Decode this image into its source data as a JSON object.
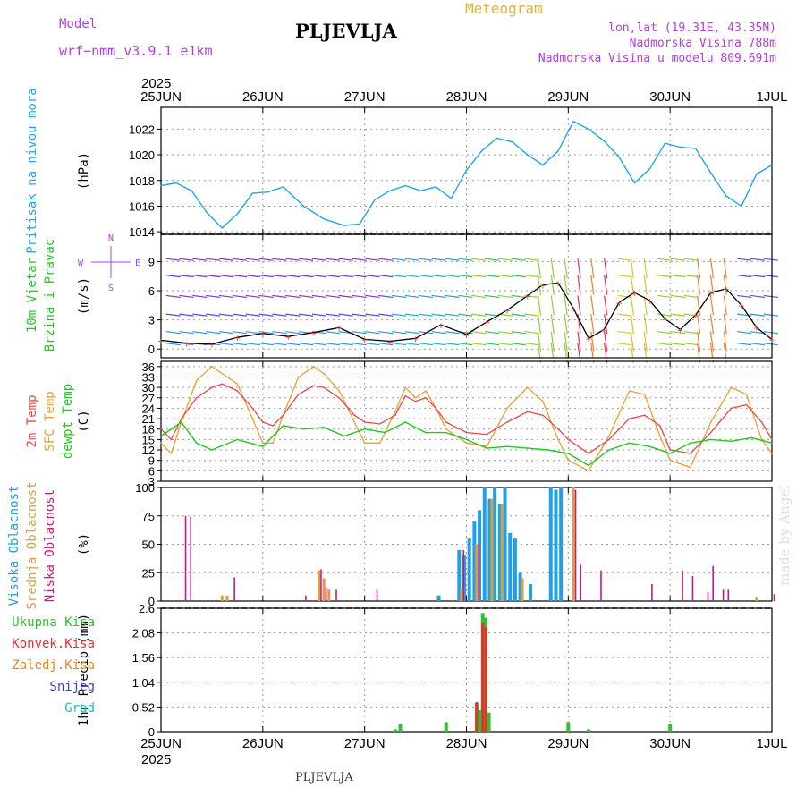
{
  "header": {
    "station": "PLJEVLJA",
    "model_label": "Model",
    "model_name": "wrf−nmm_v3.9.1  e1km",
    "meteogram_title": "Meteogram",
    "coords": "lon,lat (19.31E, 43.35N)",
    "elevation": "Nadmorska Visina 788m",
    "model_elevation": "Nadmorska Visina u modelu 809.691m",
    "station_bottom": "PLJEVLJA",
    "credit": "made by Angel"
  },
  "time_axis": {
    "year": "2025",
    "labels": [
      "25JUN",
      "26JUN",
      "27JUN",
      "28JUN",
      "29JUN",
      "30JUN",
      "1JUL"
    ]
  },
  "colors": {
    "pressure": "#1ea8e8",
    "wind_speed": "#000000",
    "temp_2m": "#e84848",
    "temp_sfc": "#e8a030",
    "dewpoint": "#20c820",
    "cloud_high": "#20a0e8",
    "cloud_mid": "#d8a040",
    "cloud_low": "#c01890",
    "precip_total": "#30c030",
    "precip_convective": "#e83030",
    "precip_freezing": "#f08020",
    "snow": "#4040e0",
    "hail": "#20c0c0"
  },
  "chart_data": [
    {
      "type": "line",
      "panel": "pressure",
      "ylabel": "(hPa)",
      "side_label": "Pritisak na nivou mora",
      "yticks": [
        1014,
        1016,
        1018,
        1020,
        1022
      ],
      "ylim": [
        1013.8,
        1023.7
      ],
      "series": [
        {
          "name": "Pritisak na nivou mora",
          "color": "#1ea8e8",
          "x": [
            0,
            0.15,
            0.3,
            0.45,
            0.6,
            0.75,
            0.9,
            1.05,
            1.2,
            1.4,
            1.6,
            1.8,
            1.95,
            2.1,
            2.25,
            2.4,
            2.55,
            2.7,
            2.85,
            3.0,
            3.15,
            3.3,
            3.45,
            3.6,
            3.75,
            3.9,
            4.05,
            4.2,
            4.35,
            4.5,
            4.65,
            4.8,
            4.95,
            5.1,
            5.25,
            5.4,
            5.55,
            5.7,
            5.85,
            6.0
          ],
          "y": [
            1017.6,
            1017.8,
            1017.2,
            1015.5,
            1014.3,
            1015.4,
            1017.0,
            1017.1,
            1017.5,
            1016.0,
            1015.0,
            1014.5,
            1014.6,
            1016.5,
            1017.2,
            1017.6,
            1017.2,
            1017.5,
            1016.6,
            1018.8,
            1020.3,
            1021.3,
            1021.0,
            1020.0,
            1019.2,
            1020.3,
            1022.6,
            1022.0,
            1021.1,
            1019.8,
            1017.8,
            1018.9,
            1020.9,
            1020.6,
            1020.5,
            1018.6,
            1016.8,
            1016.0,
            1018.5,
            1019.2
          ]
        }
      ]
    },
    {
      "type": "line",
      "panel": "wind",
      "ylabel": "(m/s)",
      "side_label": [
        "10m Vjetar",
        "Brzina i Pravac"
      ],
      "compass": [
        "N",
        "W",
        "E",
        "S"
      ],
      "yticks": [
        0,
        3,
        6,
        9
      ],
      "ylim": [
        -0.9,
        11.8
      ],
      "series": [
        {
          "name": "Brzina",
          "color": "#000000",
          "x": [
            0,
            0.25,
            0.5,
            0.75,
            1.0,
            1.25,
            1.5,
            1.75,
            2.0,
            2.25,
            2.5,
            2.75,
            3.0,
            3.2,
            3.4,
            3.6,
            3.75,
            3.9,
            4.05,
            4.2,
            4.35,
            4.5,
            4.65,
            4.8,
            4.95,
            5.1,
            5.25,
            5.4,
            5.55,
            5.7,
            5.85,
            6.0
          ],
          "y": [
            0.9,
            0.6,
            0.5,
            1.2,
            1.6,
            1.3,
            1.7,
            2.2,
            1.0,
            0.8,
            1.1,
            2.5,
            1.5,
            2.8,
            4.0,
            5.5,
            6.6,
            6.8,
            4.2,
            1.1,
            2.0,
            4.8,
            5.8,
            5.0,
            3.1,
            2.0,
            3.5,
            5.8,
            6.2,
            4.5,
            2.2,
            1.0
          ]
        }
      ]
    },
    {
      "type": "line",
      "panel": "temperature",
      "ylabel": "(C)",
      "side_label": [
        "2m Temp",
        "SFC Temp",
        "dewpt Temp"
      ],
      "yticks": [
        3,
        6,
        9,
        12,
        15,
        18,
        21,
        24,
        27,
        30,
        33,
        36
      ],
      "ylim": [
        3,
        37.5
      ],
      "series": [
        {
          "name": "2m Temp",
          "color": "#e84848",
          "x": [
            0,
            0.1,
            0.2,
            0.35,
            0.5,
            0.6,
            0.75,
            0.9,
            1.0,
            1.1,
            1.2,
            1.35,
            1.5,
            1.6,
            1.75,
            1.9,
            2.0,
            2.15,
            2.3,
            2.4,
            2.5,
            2.6,
            2.7,
            2.8,
            3.0,
            3.2,
            3.4,
            3.6,
            3.75,
            3.9,
            4.0,
            4.2,
            4.4,
            4.6,
            4.75,
            4.9,
            5.0,
            5.2,
            5.4,
            5.6,
            5.75,
            5.9,
            6.0
          ],
          "y": [
            18,
            15,
            21,
            27,
            30,
            31,
            29,
            24,
            20,
            19,
            22,
            28,
            30.5,
            30,
            27,
            22,
            20,
            19.5,
            22,
            27.5,
            26,
            27,
            24,
            20,
            17,
            16.5,
            20,
            23,
            22,
            18,
            15,
            11,
            15,
            21,
            22,
            19,
            12,
            11,
            17,
            24,
            25,
            20,
            15
          ]
        },
        {
          "name": "SFC Temp",
          "color": "#e8a030",
          "x": [
            0,
            0.1,
            0.2,
            0.35,
            0.5,
            0.6,
            0.75,
            0.9,
            1.0,
            1.1,
            1.2,
            1.35,
            1.5,
            1.6,
            1.75,
            1.9,
            2.0,
            2.15,
            2.3,
            2.4,
            2.5,
            2.6,
            2.7,
            2.8,
            3.0,
            3.2,
            3.4,
            3.6,
            3.75,
            3.9,
            4.0,
            4.2,
            4.4,
            4.6,
            4.75,
            4.9,
            5.0,
            5.2,
            5.4,
            5.6,
            5.75,
            5.9,
            6.0
          ],
          "y": [
            14,
            11,
            20,
            32,
            36,
            34,
            31,
            21,
            14,
            14,
            22,
            33,
            36,
            34,
            29,
            20,
            14,
            14,
            23,
            30,
            27,
            29,
            24,
            18,
            14,
            13,
            24,
            30,
            26,
            15,
            9,
            6,
            16,
            29,
            28,
            16,
            9,
            7,
            20,
            30,
            28,
            15,
            11
          ]
        },
        {
          "name": "dewpt Temp",
          "color": "#20c820",
          "x": [
            0,
            0.2,
            0.35,
            0.5,
            0.75,
            1.0,
            1.2,
            1.4,
            1.6,
            1.8,
            2.0,
            2.2,
            2.4,
            2.6,
            2.8,
            3.0,
            3.2,
            3.4,
            3.6,
            3.8,
            4.0,
            4.2,
            4.4,
            4.6,
            4.8,
            5.0,
            5.2,
            5.4,
            5.6,
            5.8,
            6.0
          ],
          "y": [
            16,
            20,
            14,
            12,
            15,
            13,
            19,
            18,
            18.5,
            16,
            18,
            17,
            20,
            17,
            17,
            15,
            12.5,
            13,
            12.5,
            12,
            11,
            7.5,
            12,
            14,
            13,
            11,
            14,
            15,
            14.5,
            15.5,
            14
          ]
        }
      ]
    },
    {
      "type": "bar",
      "panel": "cloud",
      "ylabel": "(%)",
      "side_label": [
        "Visoka Oblacnost",
        "Srednja Oblacnost",
        "Niska Oblacnost"
      ],
      "yticks": [
        0,
        25,
        50,
        75,
        100
      ],
      "ylim": [
        0,
        100
      ],
      "series": [
        {
          "name": "Visoka Oblacnost",
          "color": "#20a0e8",
          "x": [
            2.75,
            2.95,
            3.0,
            3.05,
            3.1,
            3.15,
            3.2,
            3.25,
            3.3,
            3.35,
            3.4,
            3.45,
            3.5,
            3.55,
            3.65,
            3.85,
            3.9,
            3.95
          ],
          "y": [
            5,
            45,
            40,
            55,
            70,
            80,
            100,
            90,
            100,
            85,
            100,
            60,
            55,
            25,
            15,
            100,
            98,
            100
          ]
        },
        {
          "name": "Srednja Oblacnost",
          "color": "#d8a040",
          "x": [
            0.6,
            0.65,
            1.55,
            1.6,
            1.65,
            2.95,
            3.1,
            3.25,
            3.35,
            3.55,
            4.05,
            5.85
          ],
          "y": [
            5,
            5,
            27,
            20,
            10,
            10,
            50,
            90,
            85,
            20,
            100,
            3
          ]
        },
        {
          "name": "Niska Oblacnost",
          "color": "#c01890",
          "x": [
            0.22,
            0.27,
            0.7,
            1.4,
            1.55,
            1.6,
            1.7,
            2.1,
            2.95,
            3.1,
            4.05,
            4.1,
            4.3,
            4.8,
            5.1,
            5.2,
            5.35,
            5.4,
            5.5,
            5.55,
            6.0
          ],
          "y": [
            75,
            74,
            21,
            5,
            28,
            12,
            10,
            10,
            45,
            50,
            98,
            32,
            27,
            15,
            27,
            22,
            8,
            31,
            10,
            10,
            6
          ]
        }
      ]
    },
    {
      "type": "bar",
      "panel": "precipitation",
      "ylabel": "1hr Precip (mm)",
      "side_label": [
        "Ukupna Kisa",
        "Konvek.Kisa",
        "Zaledj.Kisa",
        "Snijeg",
        "Grad"
      ],
      "yticks": [
        0,
        0.52,
        1.04,
        1.56,
        2.08,
        2.6
      ],
      "ylim": [
        0,
        2.6
      ],
      "series": [
        {
          "name": "Ukupna Kisa",
          "color": "#30c030",
          "x": [
            2.3,
            2.35,
            2.8,
            3.1,
            3.13,
            3.16,
            3.19,
            3.22,
            4.0,
            4.2,
            5.0
          ],
          "y": [
            0.05,
            0.15,
            0.2,
            0.6,
            0.45,
            2.5,
            2.4,
            0.4,
            0.2,
            0.05,
            0.15
          ]
        },
        {
          "name": "Konvek.Kisa",
          "color": "#e83030",
          "x": [
            3.1,
            3.16,
            3.19
          ],
          "y": [
            0.62,
            2.3,
            2.2
          ]
        },
        {
          "name": "Zaledj.Kisa",
          "color": "#f08020",
          "x": [],
          "y": []
        },
        {
          "name": "Snijeg",
          "color": "#4040e0",
          "x": [],
          "y": []
        },
        {
          "name": "Grad",
          "color": "#20c0c0",
          "x": [],
          "y": []
        }
      ]
    }
  ]
}
